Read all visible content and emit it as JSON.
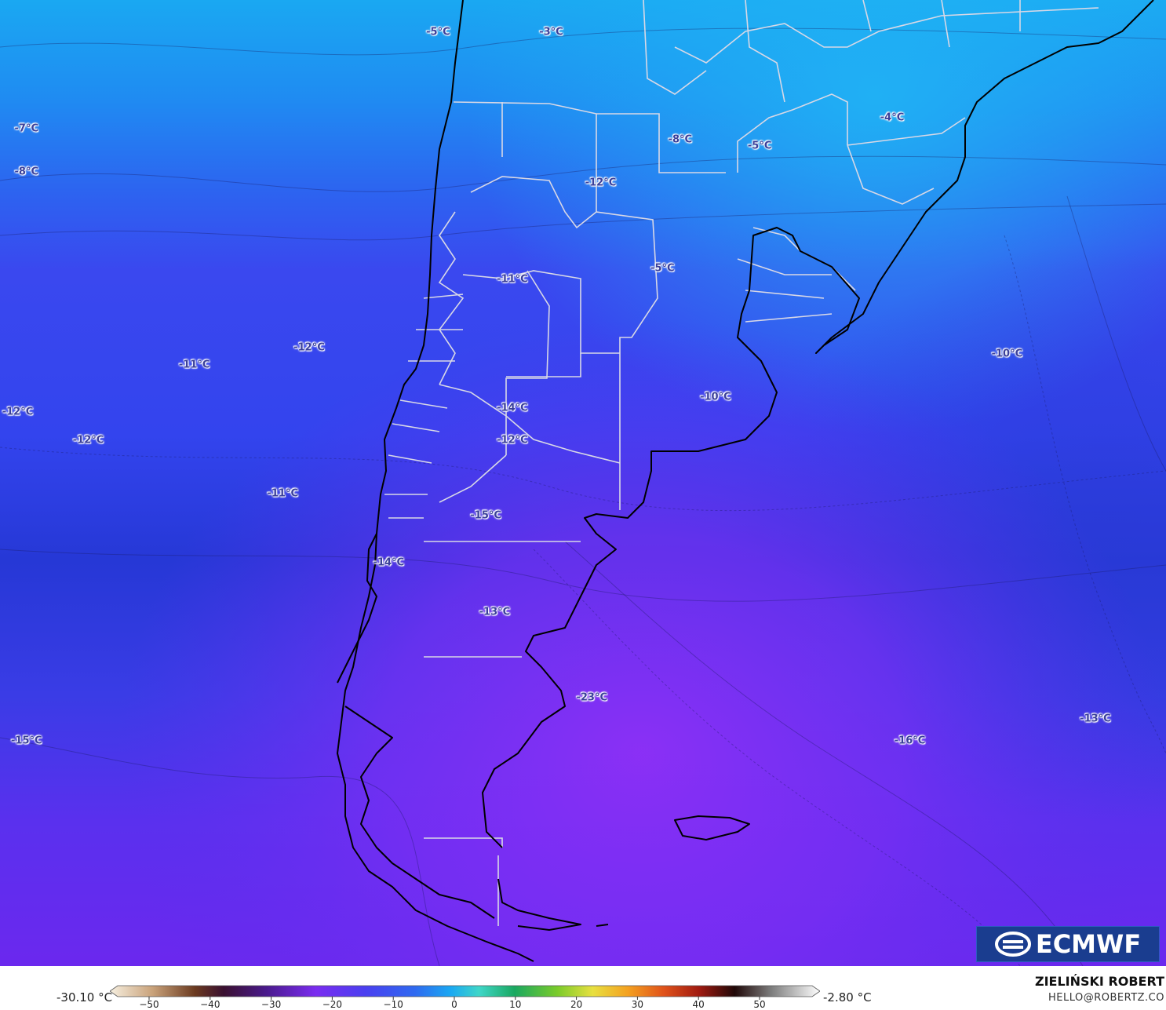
{
  "map": {
    "temperature_labels": [
      {
        "text": "-5°C",
        "lon": -71.2,
        "lat": -19.5
      },
      {
        "text": "-3°C",
        "lon": -64.8,
        "lat": -19.5
      },
      {
        "text": "-7°C",
        "lon": -94.5,
        "lat": -24.0
      },
      {
        "text": "-8°C",
        "lon": -94.5,
        "lat": -26.0
      },
      {
        "text": "-4°C",
        "lon": -45.5,
        "lat": -23.5
      },
      {
        "text": "-8°C",
        "lon": -57.5,
        "lat": -24.5
      },
      {
        "text": "-5°C",
        "lon": -53.0,
        "lat": -24.8
      },
      {
        "text": "-12°C",
        "lon": -62.0,
        "lat": -26.5
      },
      {
        "text": "-5°C",
        "lon": -58.5,
        "lat": -30.5
      },
      {
        "text": "-11°C",
        "lon": -67.0,
        "lat": -31.0
      },
      {
        "text": "-12°C",
        "lon": -78.5,
        "lat": -34.2
      },
      {
        "text": "-11°C",
        "lon": -85.0,
        "lat": -35.0
      },
      {
        "text": "-10°C",
        "lon": -39.0,
        "lat": -34.5
      },
      {
        "text": "-12°C",
        "lon": -95.0,
        "lat": -37.2
      },
      {
        "text": "-14°C",
        "lon": -67.0,
        "lat": -37.0
      },
      {
        "text": "-10°C",
        "lon": -55.5,
        "lat": -36.5
      },
      {
        "text": "-12°C",
        "lon": -91.0,
        "lat": -38.5
      },
      {
        "text": "-12°C",
        "lon": -67.0,
        "lat": -38.5
      },
      {
        "text": "-11°C",
        "lon": -80.0,
        "lat": -41.0
      },
      {
        "text": "-15°C",
        "lon": -68.5,
        "lat": -42.0
      },
      {
        "text": "-14°C",
        "lon": -74.0,
        "lat": -44.2
      },
      {
        "text": "-13°C",
        "lon": -68.0,
        "lat": -46.5
      },
      {
        "text": "-23°C",
        "lon": -62.5,
        "lat": -50.5
      },
      {
        "text": "-16°C",
        "lon": -44.5,
        "lat": -52.5
      },
      {
        "text": "-13°C",
        "lon": -34.0,
        "lat": -51.5
      },
      {
        "text": "-15°C",
        "lon": -94.5,
        "lat": -52.5
      }
    ]
  },
  "logo": {
    "text": "ECMWF"
  },
  "colorbar": {
    "min_label": "-30.10 °C",
    "max_label": "-2.80 °C",
    "ticks": [
      "−50",
      "−40",
      "−30",
      "−20",
      "−10",
      "0",
      "10",
      "20",
      "30",
      "40",
      "50"
    ]
  },
  "credit": {
    "name": "ZIELIŃSKI ROBERT",
    "email": "HELLO@ROBERTZ.CO"
  },
  "colors": {
    "ocean_north": "#1aa7f0",
    "mid_blue": "#3347f0",
    "deep_blue": "#2436d8",
    "violet": "#6a2bf2",
    "purple": "#8a2ef5",
    "coast_line": "#000000",
    "border_line": "#d8d8e6"
  }
}
